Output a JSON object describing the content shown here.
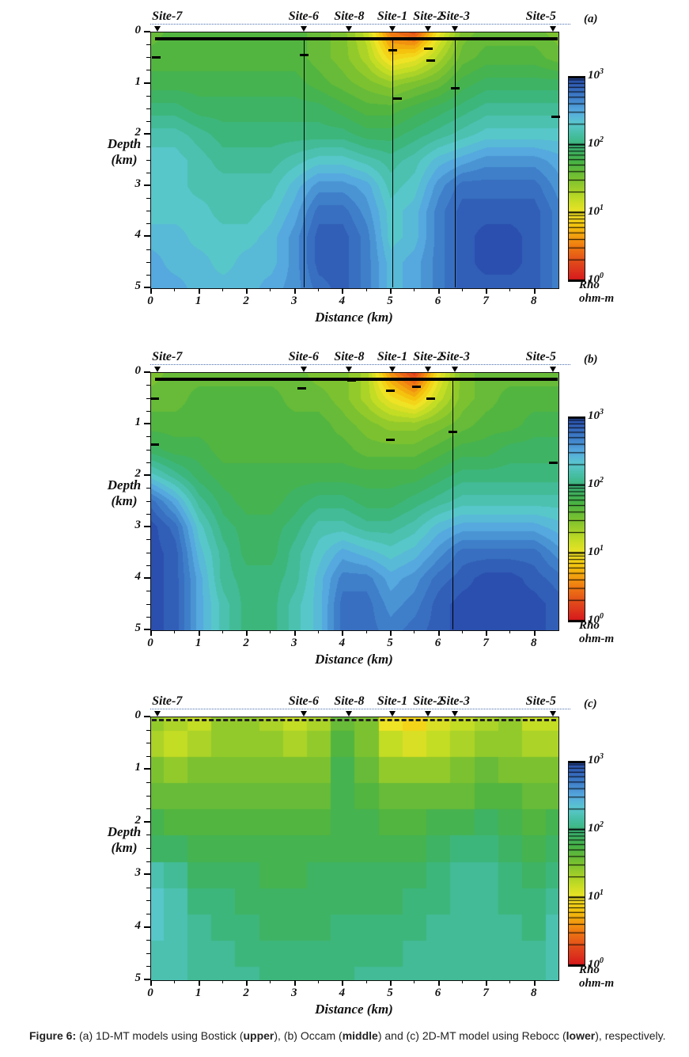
{
  "figure": {
    "caption": [
      {
        "text": "Figure 6: ",
        "bold": true
      },
      {
        "text": "(a) 1D-MT models using Bostick (",
        "bold": false
      },
      {
        "text": "upper",
        "bold": true
      },
      {
        "text": "), (b) Occam (",
        "bold": false
      },
      {
        "text": "middle",
        "bold": true
      },
      {
        "text": ") and (c) 2D-MT model using Rebocc (",
        "bold": false
      },
      {
        "text": "lower",
        "bold": true
      },
      {
        "text": "), respectively.",
        "bold": false
      }
    ],
    "colormap": [
      {
        "t": 0.0,
        "color": "#d7191c"
      },
      {
        "t": 0.08,
        "color": "#e0441c"
      },
      {
        "t": 0.17,
        "color": "#f07c12"
      },
      {
        "t": 0.27,
        "color": "#f6c50e"
      },
      {
        "t": 0.33,
        "color": "#f2e426"
      },
      {
        "t": 0.4,
        "color": "#c3dc24"
      },
      {
        "t": 0.5,
        "color": "#7cc230"
      },
      {
        "t": 0.58,
        "color": "#4ab344"
      },
      {
        "t": 0.65,
        "color": "#3bb46e"
      },
      {
        "t": 0.71,
        "color": "#44bd9e"
      },
      {
        "t": 0.77,
        "color": "#5ac8cd"
      },
      {
        "t": 0.83,
        "color": "#57ace0"
      },
      {
        "t": 0.9,
        "color": "#3f7fca"
      },
      {
        "t": 1.0,
        "color": "#2b4fae"
      }
    ]
  },
  "chart_data": [
    {
      "type": "heatmap",
      "panel": "(a)",
      "model": "1D-MT model using Bostick (upper)",
      "xlabel": "Distance (km)",
      "ylabel_lines": [
        "Depth",
        "(km)"
      ],
      "x_range": [
        0,
        8.5
      ],
      "depth_range": [
        0,
        5
      ],
      "x_ticks": [
        "0",
        "1",
        "2",
        "3",
        "4",
        "5",
        "6",
        "7",
        "8"
      ],
      "y_ticks": [
        "0",
        "1",
        "2",
        "3",
        "4",
        "5"
      ],
      "value_scale": "log10 resistivity (ohm-m), range 0 to 3",
      "colorbar": {
        "ticks": [
          {
            "base": "10",
            "exp": "3"
          },
          {
            "base": "10",
            "exp": "2"
          },
          {
            "base": "10",
            "exp": "1"
          },
          {
            "base": "10",
            "exp": "0"
          }
        ],
        "title_lines": [
          "Rho",
          "ohm-m"
        ]
      },
      "sites": [
        {
          "name": "Site-7",
          "x": 0.15,
          "lx": 0.35
        },
        {
          "name": "Site-6",
          "x": 3.2
        },
        {
          "name": "Site-8",
          "x": 4.15
        },
        {
          "name": "Site-1",
          "x": 5.05
        },
        {
          "name": "Site-2",
          "x": 5.8
        },
        {
          "name": "Site-3",
          "x": 6.35
        },
        {
          "name": "Site-5",
          "x": 8.4,
          "lx": 8.15
        }
      ],
      "vlines": [
        3.2,
        5.05,
        6.35
      ],
      "marks": [
        [
          0.12,
          0.5
        ],
        [
          3.2,
          0.45
        ],
        [
          5.05,
          0.35
        ],
        [
          5.15,
          1.3
        ],
        [
          5.8,
          0.33
        ],
        [
          5.85,
          0.55
        ],
        [
          6.35,
          1.1
        ],
        [
          8.45,
          1.65
        ]
      ],
      "surface": "solid",
      "blocky": false,
      "grid_x": [
        0,
        0.5,
        1,
        1.5,
        2,
        2.5,
        3,
        3.5,
        4,
        4.5,
        5,
        5.5,
        6,
        6.5,
        7,
        7.5,
        8,
        8.5
      ],
      "grid_depth": [
        0,
        0.5,
        1,
        1.5,
        2,
        2.5,
        3,
        3.5,
        4,
        4.5,
        5
      ],
      "values": [
        [
          1.6,
          1.7,
          1.7,
          1.7,
          1.7,
          1.7,
          1.7,
          1.6,
          1.5,
          1.2,
          0.5,
          0.3,
          1.0,
          1.5,
          1.6,
          1.6,
          1.6,
          1.5
        ],
        [
          1.7,
          1.7,
          1.7,
          1.7,
          1.7,
          1.7,
          1.7,
          1.6,
          1.5,
          1.3,
          0.9,
          1.0,
          1.3,
          1.6,
          1.7,
          1.7,
          1.7,
          1.6
        ],
        [
          1.8,
          1.8,
          1.8,
          1.8,
          1.8,
          1.8,
          1.8,
          1.7,
          1.6,
          1.5,
          1.4,
          1.5,
          1.6,
          1.8,
          1.9,
          1.9,
          1.9,
          1.9
        ],
        [
          2.0,
          2.0,
          1.9,
          1.9,
          1.9,
          1.9,
          1.9,
          1.9,
          1.8,
          1.7,
          1.7,
          1.8,
          1.9,
          2.0,
          2.1,
          2.1,
          2.1,
          2.1
        ],
        [
          2.2,
          2.2,
          2.1,
          2.0,
          2.0,
          2.0,
          2.0,
          2.0,
          2.0,
          1.9,
          1.9,
          2.0,
          2.1,
          2.2,
          2.3,
          2.3,
          2.3,
          2.3
        ],
        [
          2.3,
          2.3,
          2.2,
          2.1,
          2.1,
          2.1,
          2.2,
          2.3,
          2.3,
          2.2,
          2.1,
          2.2,
          2.4,
          2.5,
          2.6,
          2.6,
          2.6,
          2.5
        ],
        [
          2.3,
          2.3,
          2.2,
          2.2,
          2.2,
          2.2,
          2.4,
          2.6,
          2.6,
          2.5,
          2.2,
          2.3,
          2.6,
          2.8,
          2.8,
          2.8,
          2.8,
          2.6
        ],
        [
          2.3,
          2.3,
          2.3,
          2.2,
          2.2,
          2.3,
          2.5,
          2.8,
          2.8,
          2.6,
          2.3,
          2.4,
          2.7,
          2.9,
          2.9,
          2.9,
          2.9,
          2.7
        ],
        [
          2.4,
          2.4,
          2.3,
          2.3,
          2.3,
          2.4,
          2.6,
          2.9,
          2.9,
          2.7,
          2.3,
          2.4,
          2.7,
          2.9,
          3.0,
          3.0,
          2.9,
          2.7
        ],
        [
          2.5,
          2.4,
          2.4,
          2.3,
          2.4,
          2.4,
          2.6,
          2.9,
          2.9,
          2.7,
          2.4,
          2.5,
          2.7,
          2.9,
          3.0,
          3.0,
          2.9,
          2.7
        ],
        [
          2.5,
          2.5,
          2.4,
          2.4,
          2.4,
          2.5,
          2.6,
          2.8,
          2.9,
          2.7,
          2.4,
          2.5,
          2.7,
          2.9,
          2.9,
          2.9,
          2.9,
          2.7
        ]
      ]
    },
    {
      "type": "heatmap",
      "panel": "(b)",
      "model": "1D-MT model using Occam (middle)",
      "xlabel": "Distance (km)",
      "ylabel_lines": [
        "Depth",
        "(km)"
      ],
      "x_range": [
        0,
        8.5
      ],
      "depth_range": [
        0,
        5
      ],
      "x_ticks": [
        "0",
        "1",
        "2",
        "3",
        "4",
        "5",
        "6",
        "7",
        "8"
      ],
      "y_ticks": [
        "0",
        "1",
        "2",
        "3",
        "4",
        "5"
      ],
      "value_scale": "log10 resistivity (ohm-m), range 0 to 3",
      "colorbar": {
        "ticks": [
          {
            "base": "10",
            "exp": "3"
          },
          {
            "base": "10",
            "exp": "2"
          },
          {
            "base": "10",
            "exp": "1"
          },
          {
            "base": "10",
            "exp": "0"
          }
        ],
        "title_lines": [
          "Rho",
          "ohm-m"
        ]
      },
      "sites": [
        {
          "name": "Site-7",
          "x": 0.15,
          "lx": 0.35
        },
        {
          "name": "Site-6",
          "x": 3.2
        },
        {
          "name": "Site-8",
          "x": 4.15
        },
        {
          "name": "Site-1",
          "x": 5.05
        },
        {
          "name": "Site-2",
          "x": 5.8
        },
        {
          "name": "Site-3",
          "x": 6.35
        },
        {
          "name": "Site-5",
          "x": 8.4,
          "lx": 8.15
        }
      ],
      "vlines": [
        6.3
      ],
      "marks": [
        [
          0.08,
          0.5
        ],
        [
          0.08,
          1.4
        ],
        [
          3.15,
          0.3
        ],
        [
          3.2,
          0.12
        ],
        [
          4.2,
          0.15
        ],
        [
          5.0,
          0.35
        ],
        [
          5.55,
          0.28
        ],
        [
          5.85,
          0.5
        ],
        [
          5.0,
          1.3
        ],
        [
          6.3,
          1.15
        ],
        [
          8.4,
          1.75
        ]
      ],
      "surface": "solid",
      "blocky": false,
      "grid_x": [
        0,
        0.5,
        1,
        1.5,
        2,
        2.5,
        3,
        3.5,
        4,
        4.5,
        5,
        5.5,
        6,
        6.5,
        7,
        7.5,
        8,
        8.5
      ],
      "grid_depth": [
        0,
        0.5,
        1,
        1.5,
        2,
        2.5,
        3,
        3.5,
        4,
        4.5,
        5
      ],
      "values": [
        [
          1.5,
          1.6,
          1.6,
          1.6,
          1.6,
          1.6,
          1.6,
          1.5,
          1.5,
          1.3,
          0.6,
          0.2,
          1.0,
          1.5,
          1.6,
          1.6,
          1.6,
          1.6
        ],
        [
          1.6,
          1.6,
          1.7,
          1.7,
          1.7,
          1.7,
          1.6,
          1.6,
          1.5,
          1.3,
          1.0,
          0.8,
          1.2,
          1.5,
          1.6,
          1.7,
          1.7,
          1.7
        ],
        [
          1.7,
          1.7,
          1.7,
          1.7,
          1.7,
          1.7,
          1.7,
          1.7,
          1.6,
          1.5,
          1.4,
          1.4,
          1.5,
          1.6,
          1.7,
          1.7,
          1.8,
          1.8
        ],
        [
          1.9,
          1.8,
          1.8,
          1.7,
          1.7,
          1.7,
          1.7,
          1.7,
          1.7,
          1.6,
          1.6,
          1.6,
          1.7,
          1.8,
          1.8,
          1.9,
          1.9,
          1.9
        ],
        [
          2.3,
          2.1,
          1.9,
          1.8,
          1.8,
          1.8,
          1.8,
          1.8,
          1.8,
          1.8,
          1.8,
          1.8,
          1.9,
          2.0,
          2.0,
          2.0,
          2.0,
          2.0
        ],
        [
          2.8,
          2.5,
          2.1,
          1.9,
          1.8,
          1.8,
          1.9,
          2.0,
          2.0,
          1.9,
          1.9,
          2.0,
          2.1,
          2.2,
          2.2,
          2.2,
          2.2,
          2.2
        ],
        [
          3.0,
          2.8,
          2.3,
          2.0,
          1.9,
          1.9,
          2.0,
          2.2,
          2.2,
          2.1,
          2.1,
          2.2,
          2.4,
          2.5,
          2.5,
          2.5,
          2.5,
          2.4
        ],
        [
          3.0,
          2.9,
          2.4,
          2.1,
          1.9,
          1.9,
          2.1,
          2.3,
          2.5,
          2.4,
          2.3,
          2.4,
          2.6,
          2.8,
          2.8,
          2.8,
          2.8,
          2.6
        ],
        [
          3.0,
          2.9,
          2.5,
          2.1,
          2.0,
          2.0,
          2.1,
          2.4,
          2.7,
          2.7,
          2.5,
          2.6,
          2.8,
          2.9,
          3.0,
          3.0,
          2.9,
          2.8
        ],
        [
          3.0,
          2.9,
          2.5,
          2.2,
          2.0,
          2.0,
          2.2,
          2.4,
          2.8,
          2.8,
          2.6,
          2.7,
          2.9,
          3.0,
          3.0,
          3.0,
          3.0,
          2.9
        ],
        [
          3.0,
          2.9,
          2.5,
          2.2,
          2.0,
          2.0,
          2.2,
          2.4,
          2.8,
          2.8,
          2.7,
          2.8,
          2.9,
          3.0,
          3.0,
          3.0,
          3.0,
          2.9
        ]
      ]
    },
    {
      "type": "heatmap",
      "panel": "(c)",
      "model": "2D-MT model using Rebocc (lower)",
      "xlabel": "Distance (km)",
      "ylabel_lines": [
        "Depth",
        "(km)"
      ],
      "x_range": [
        0,
        8.5
      ],
      "depth_range": [
        0,
        5
      ],
      "x_ticks": [
        "0",
        "1",
        "2",
        "3",
        "4",
        "5",
        "6",
        "7",
        "8"
      ],
      "y_ticks": [
        "0",
        "1",
        "2",
        "3",
        "4",
        "5"
      ],
      "value_scale": "log10 resistivity (ohm-m), range 0 to 3",
      "colorbar": {
        "ticks": [
          {
            "base": "10",
            "exp": "3"
          },
          {
            "base": "10",
            "exp": "2"
          },
          {
            "base": "10",
            "exp": "1"
          },
          {
            "base": "10",
            "exp": "0"
          }
        ],
        "title_lines": [
          "Rho",
          "ohm-m"
        ]
      },
      "sites": [
        {
          "name": "Site-7",
          "x": 0.15,
          "lx": 0.35
        },
        {
          "name": "Site-6",
          "x": 3.2
        },
        {
          "name": "Site-8",
          "x": 4.15
        },
        {
          "name": "Site-1",
          "x": 5.05
        },
        {
          "name": "Site-2",
          "x": 5.8
        },
        {
          "name": "Site-3",
          "x": 6.35
        },
        {
          "name": "Site-5",
          "x": 8.4,
          "lx": 8.15
        }
      ],
      "vlines": [],
      "marks": [],
      "surface": "dashed",
      "blocky": true,
      "grid_x": [
        0,
        0.5,
        1,
        1.5,
        2,
        2.5,
        3,
        3.5,
        4,
        4.5,
        5,
        5.5,
        6,
        6.5,
        7,
        7.5,
        8,
        8.5
      ],
      "grid_depth": [
        0,
        0.5,
        1,
        1.5,
        2,
        2.5,
        3,
        3.5,
        4,
        4.5,
        5
      ],
      "values": [
        [
          1.4,
          1.3,
          1.2,
          1.4,
          1.4,
          1.3,
          1.2,
          1.3,
          1.6,
          1.5,
          1.0,
          0.9,
          1.1,
          1.2,
          1.3,
          1.4,
          1.2,
          1.2
        ],
        [
          1.3,
          1.2,
          1.3,
          1.4,
          1.4,
          1.4,
          1.3,
          1.4,
          1.7,
          1.5,
          1.2,
          1.1,
          1.2,
          1.3,
          1.4,
          1.4,
          1.3,
          1.3
        ],
        [
          1.5,
          1.4,
          1.5,
          1.5,
          1.5,
          1.5,
          1.5,
          1.5,
          1.8,
          1.6,
          1.4,
          1.4,
          1.4,
          1.5,
          1.6,
          1.5,
          1.5,
          1.5
        ],
        [
          1.6,
          1.6,
          1.6,
          1.6,
          1.6,
          1.6,
          1.6,
          1.6,
          1.8,
          1.7,
          1.6,
          1.6,
          1.6,
          1.6,
          1.7,
          1.7,
          1.6,
          1.6
        ],
        [
          1.8,
          1.7,
          1.7,
          1.7,
          1.7,
          1.7,
          1.7,
          1.7,
          1.8,
          1.8,
          1.7,
          1.7,
          1.8,
          1.8,
          1.9,
          1.8,
          1.7,
          1.8
        ],
        [
          1.9,
          1.9,
          1.8,
          1.8,
          1.8,
          1.8,
          1.8,
          1.8,
          1.8,
          1.8,
          1.8,
          1.8,
          1.9,
          2.0,
          2.0,
          1.9,
          1.8,
          1.9
        ],
        [
          2.2,
          2.1,
          1.9,
          1.9,
          1.9,
          1.8,
          1.8,
          1.9,
          1.9,
          1.9,
          1.9,
          1.9,
          2.0,
          2.1,
          2.1,
          2.0,
          1.9,
          2.0
        ],
        [
          2.3,
          2.2,
          2.0,
          2.0,
          1.9,
          1.9,
          1.9,
          1.9,
          1.9,
          1.9,
          1.9,
          2.0,
          2.0,
          2.1,
          2.1,
          2.0,
          2.0,
          2.1
        ],
        [
          2.3,
          2.2,
          2.1,
          2.0,
          2.0,
          1.9,
          1.9,
          1.9,
          2.0,
          2.0,
          2.0,
          2.0,
          2.1,
          2.1,
          2.1,
          2.1,
          2.0,
          2.2
        ],
        [
          2.2,
          2.2,
          2.1,
          2.1,
          2.0,
          2.0,
          2.0,
          2.0,
          2.0,
          2.0,
          2.0,
          2.1,
          2.1,
          2.1,
          2.1,
          2.1,
          2.1,
          2.2
        ],
        [
          2.2,
          2.2,
          2.1,
          2.1,
          2.1,
          2.0,
          2.0,
          2.0,
          2.0,
          2.1,
          2.1,
          2.1,
          2.1,
          2.1,
          2.1,
          2.1,
          2.1,
          2.2
        ]
      ]
    }
  ]
}
